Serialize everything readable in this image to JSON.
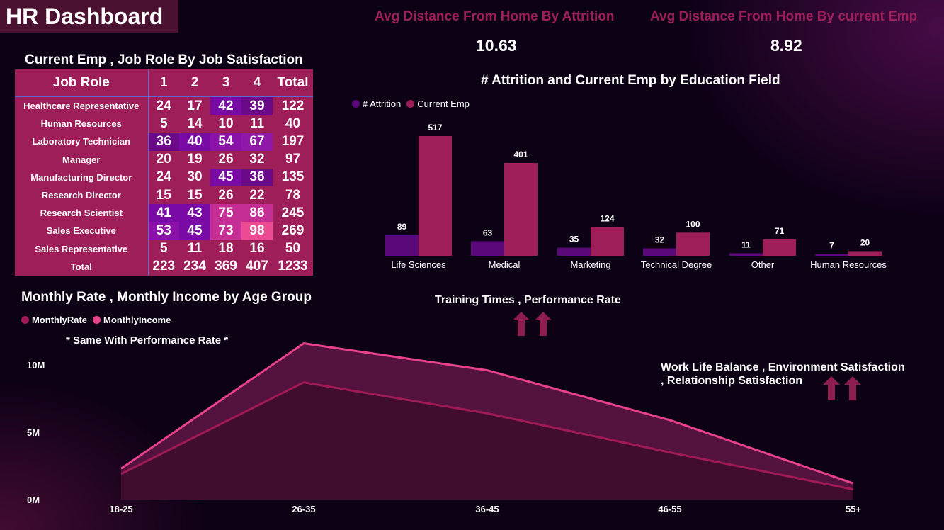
{
  "header": {
    "title": "HR Dashboard"
  },
  "kpis": [
    {
      "label": "Avg Distance From Home By Attrition",
      "value": "10.63"
    },
    {
      "label": "Avg Distance From Home By current Emp",
      "value": "8.92"
    }
  ],
  "matrix": {
    "title": "Current Emp , Job Role By Job Satisfaction",
    "headers": [
      "Job Role",
      "1",
      "2",
      "3",
      "4",
      "Total"
    ],
    "rows": [
      {
        "role": "Healthcare Representative",
        "v1": "24",
        "v2": "17",
        "v3": "42",
        "v4": "39",
        "total": "122"
      },
      {
        "role": "Human Resources",
        "v1": "5",
        "v2": "14",
        "v3": "10",
        "v4": "11",
        "total": "40"
      },
      {
        "role": "Laboratory Technician",
        "v1": "36",
        "v2": "40",
        "v3": "54",
        "v4": "67",
        "total": "197"
      },
      {
        "role": "Manager",
        "v1": "20",
        "v2": "19",
        "v3": "26",
        "v4": "32",
        "total": "97"
      },
      {
        "role": "Manufacturing Director",
        "v1": "24",
        "v2": "30",
        "v3": "45",
        "v4": "36",
        "total": "135"
      },
      {
        "role": "Research Director",
        "v1": "15",
        "v2": "15",
        "v3": "26",
        "v4": "22",
        "total": "78"
      },
      {
        "role": "Research Scientist",
        "v1": "41",
        "v2": "43",
        "v3": "75",
        "v4": "86",
        "total": "245"
      },
      {
        "role": "Sales Executive",
        "v1": "53",
        "v2": "45",
        "v3": "73",
        "v4": "98",
        "total": "269"
      },
      {
        "role": "Sales Representative",
        "v1": "5",
        "v2": "11",
        "v3": "18",
        "v4": "16",
        "total": "50"
      },
      {
        "role": "Total",
        "v1": "223",
        "v2": "234",
        "v3": "369",
        "v4": "407",
        "total": "1233"
      }
    ]
  },
  "education_chart_title": "# Attrition and Current Emp by Education Field",
  "age_chart_title": "Monthly Rate , Monthly Income by Age Group",
  "age_chart_note": "* Same With Performance Rate *",
  "training_title": "Training Times , Performance Rate",
  "worklife_title_line1": "Work Life Balance , Environment Satisfaction",
  "worklife_title_line2": ", Relationship Satisfaction",
  "colors": {
    "attrition": "#5a0a78",
    "current": "#9e1e59",
    "monthly_rate": "#a01a56",
    "monthly_income": "#e8428c",
    "heat_low": "#9e1e59",
    "heat_mid": "#7a0aa5",
    "heat_high": "#e8357f"
  },
  "icons": [
    "arrow-up-icon"
  ],
  "chart_data": [
    {
      "type": "bar",
      "title": "# Attrition and Current Emp by Education Field",
      "categories": [
        "Life Sciences",
        "Medical",
        "Marketing",
        "Technical Degree",
        "Other",
        "Human Resources"
      ],
      "series": [
        {
          "name": "# Attrition",
          "values": [
            89,
            63,
            35,
            32,
            11,
            7
          ]
        },
        {
          "name": "Current Emp",
          "values": [
            517,
            401,
            124,
            100,
            71,
            20
          ]
        }
      ],
      "ylim": [
        0,
        560
      ],
      "legend": "top-left",
      "grid": false
    },
    {
      "type": "area",
      "title": "Monthly Rate , Monthly Income by Age Group",
      "categories": [
        "18-25",
        "26-35",
        "36-45",
        "46-55",
        "55+"
      ],
      "series": [
        {
          "name": "MonthlyRate",
          "values": [
            1900000,
            8700000,
            6400000,
            3500000,
            750000
          ]
        },
        {
          "name": "MonthlyIncome",
          "values": [
            2300000,
            11600000,
            9600000,
            5900000,
            1200000
          ]
        }
      ],
      "yticks": [
        "0M",
        "5M",
        "10M"
      ],
      "ylim": [
        0,
        12000000
      ],
      "legend": "top-left",
      "grid": false
    }
  ]
}
